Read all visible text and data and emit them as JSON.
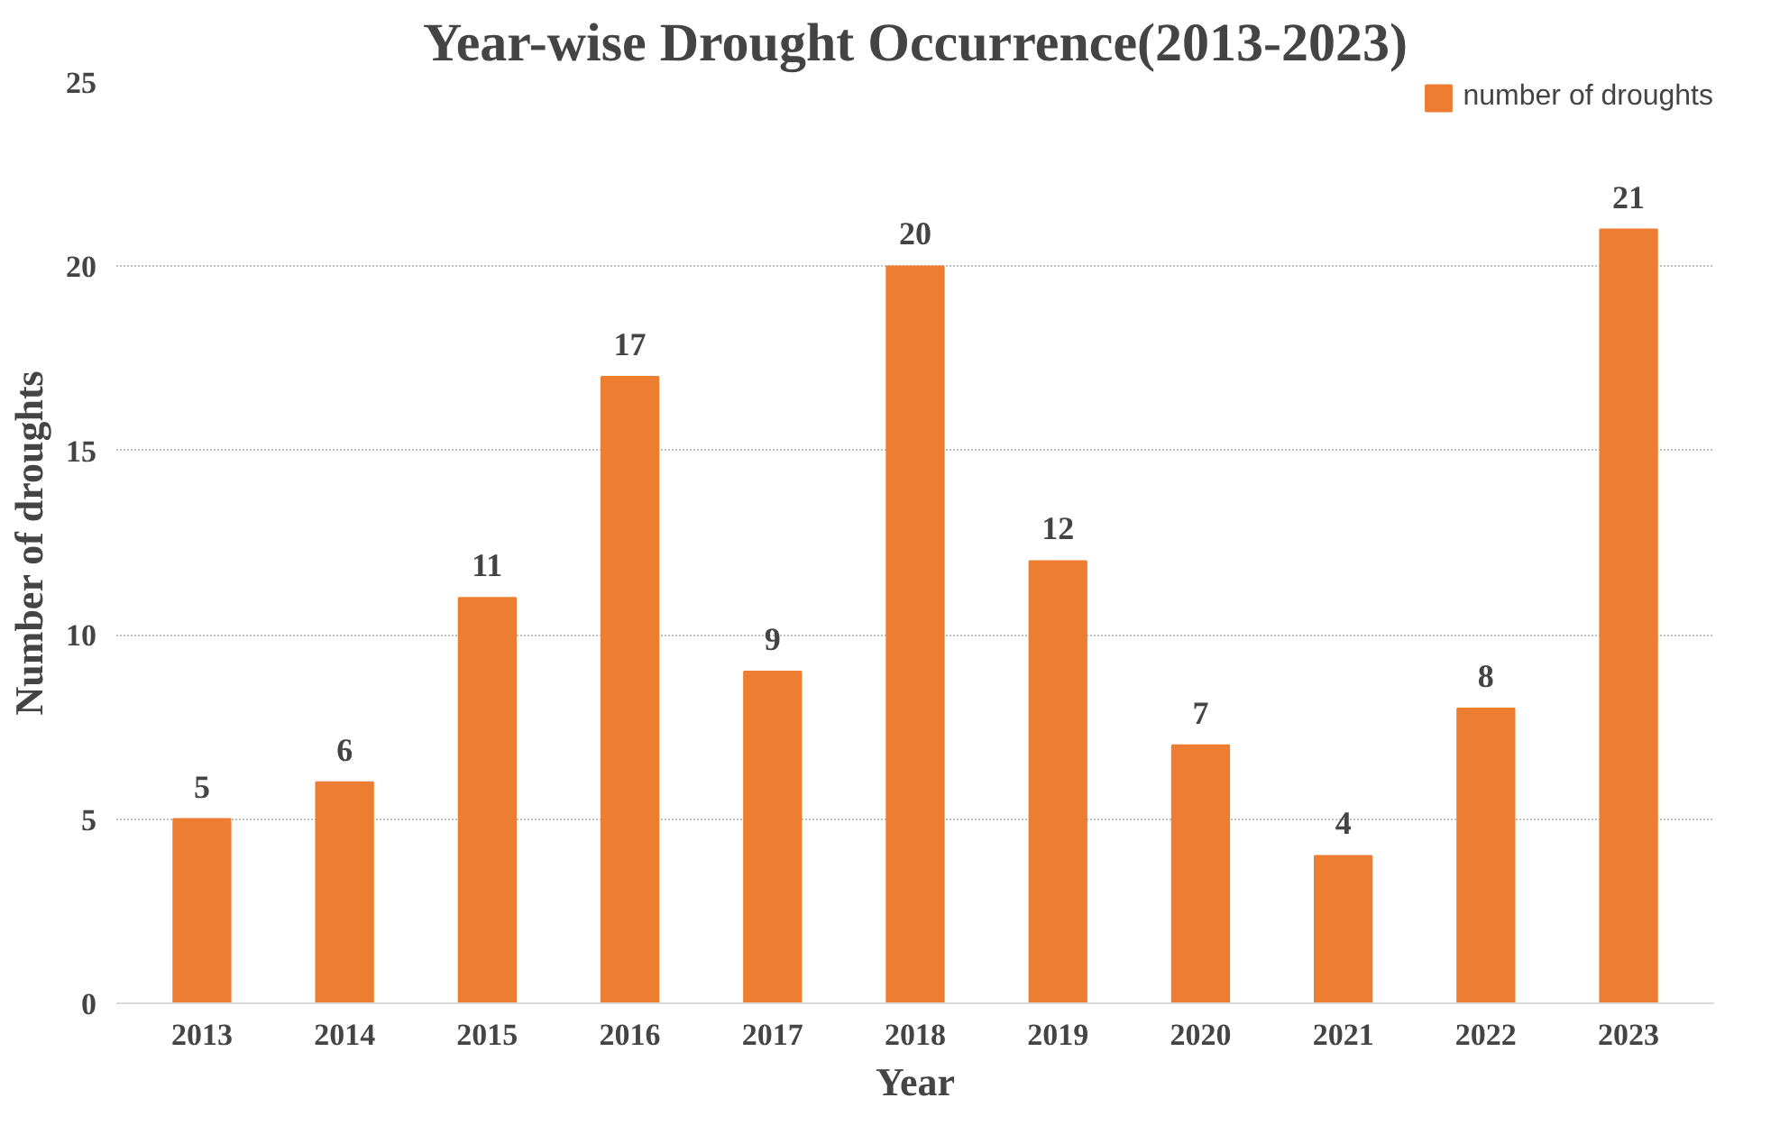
{
  "chart_data": {
    "type": "bar",
    "title": "Year-wise Drought Occurrence(2013-2023)",
    "xlabel": "Year",
    "ylabel": "Number of droughts",
    "categories": [
      "2013",
      "2014",
      "2015",
      "2016",
      "2017",
      "2018",
      "2019",
      "2020",
      "2021",
      "2022",
      "2023"
    ],
    "series": [
      {
        "name": "number of droughts",
        "color": "#ed7d31",
        "values": [
          5,
          6,
          11,
          17,
          9,
          20,
          12,
          7,
          4,
          8,
          21
        ]
      }
    ],
    "ylim": [
      0,
      25
    ],
    "yticks": [
      0,
      5,
      10,
      15,
      20,
      25
    ],
    "grid": "y",
    "legend": "top right",
    "data_labels": true
  }
}
